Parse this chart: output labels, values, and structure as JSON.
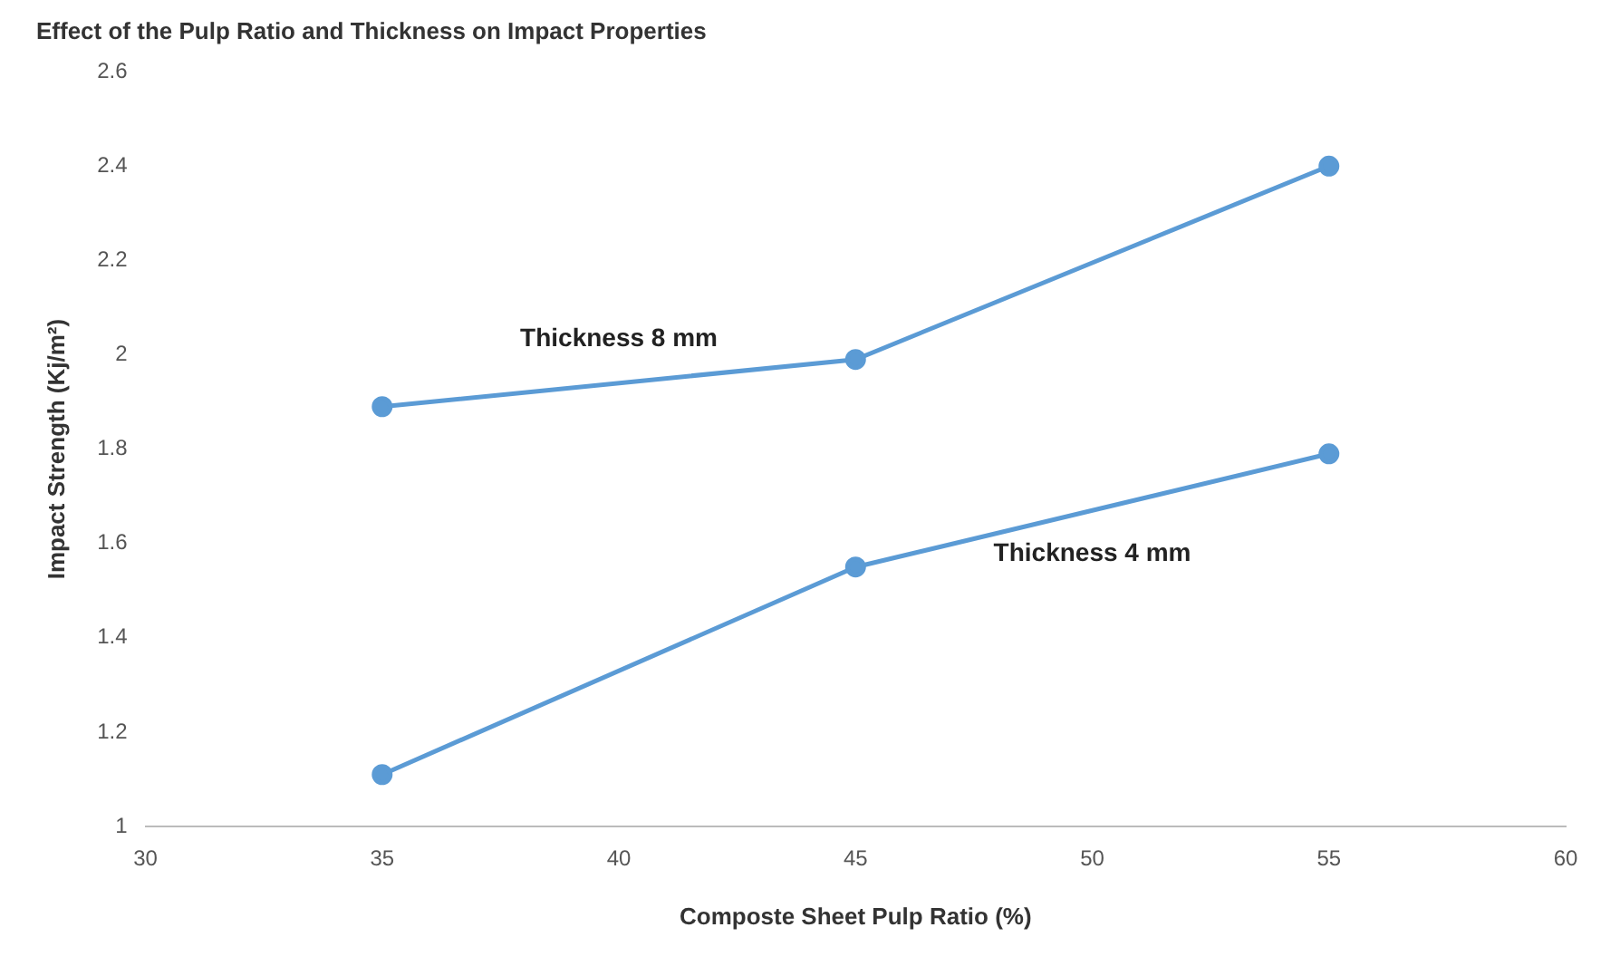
{
  "chart_data": {
    "type": "line",
    "title": "Effect of the Pulp Ratio and Thickness on Impact Properties",
    "xlabel": "Composte Sheet Pulp Ratio (%)",
    "ylabel": "Impact Strength (Kj/m²)",
    "x": [
      35,
      45,
      55
    ],
    "series": [
      {
        "name": "Thickness 8 mm",
        "color": "#5b9bd5",
        "values": [
          1.89,
          1.99,
          2.4
        ]
      },
      {
        "name": "Thickness 4 mm",
        "color": "#5b9bd5",
        "values": [
          1.11,
          1.55,
          1.79
        ]
      }
    ],
    "xlim": [
      30,
      60
    ],
    "xticks": [
      30,
      35,
      40,
      45,
      50,
      55,
      60
    ],
    "ylim": [
      1,
      2.6
    ],
    "yticks": [
      1,
      1.2,
      1.4,
      1.6,
      1.8,
      2,
      2.2,
      2.4,
      2.6
    ],
    "grid": false,
    "legend": false,
    "marker": "circle",
    "line_style": "solid"
  }
}
